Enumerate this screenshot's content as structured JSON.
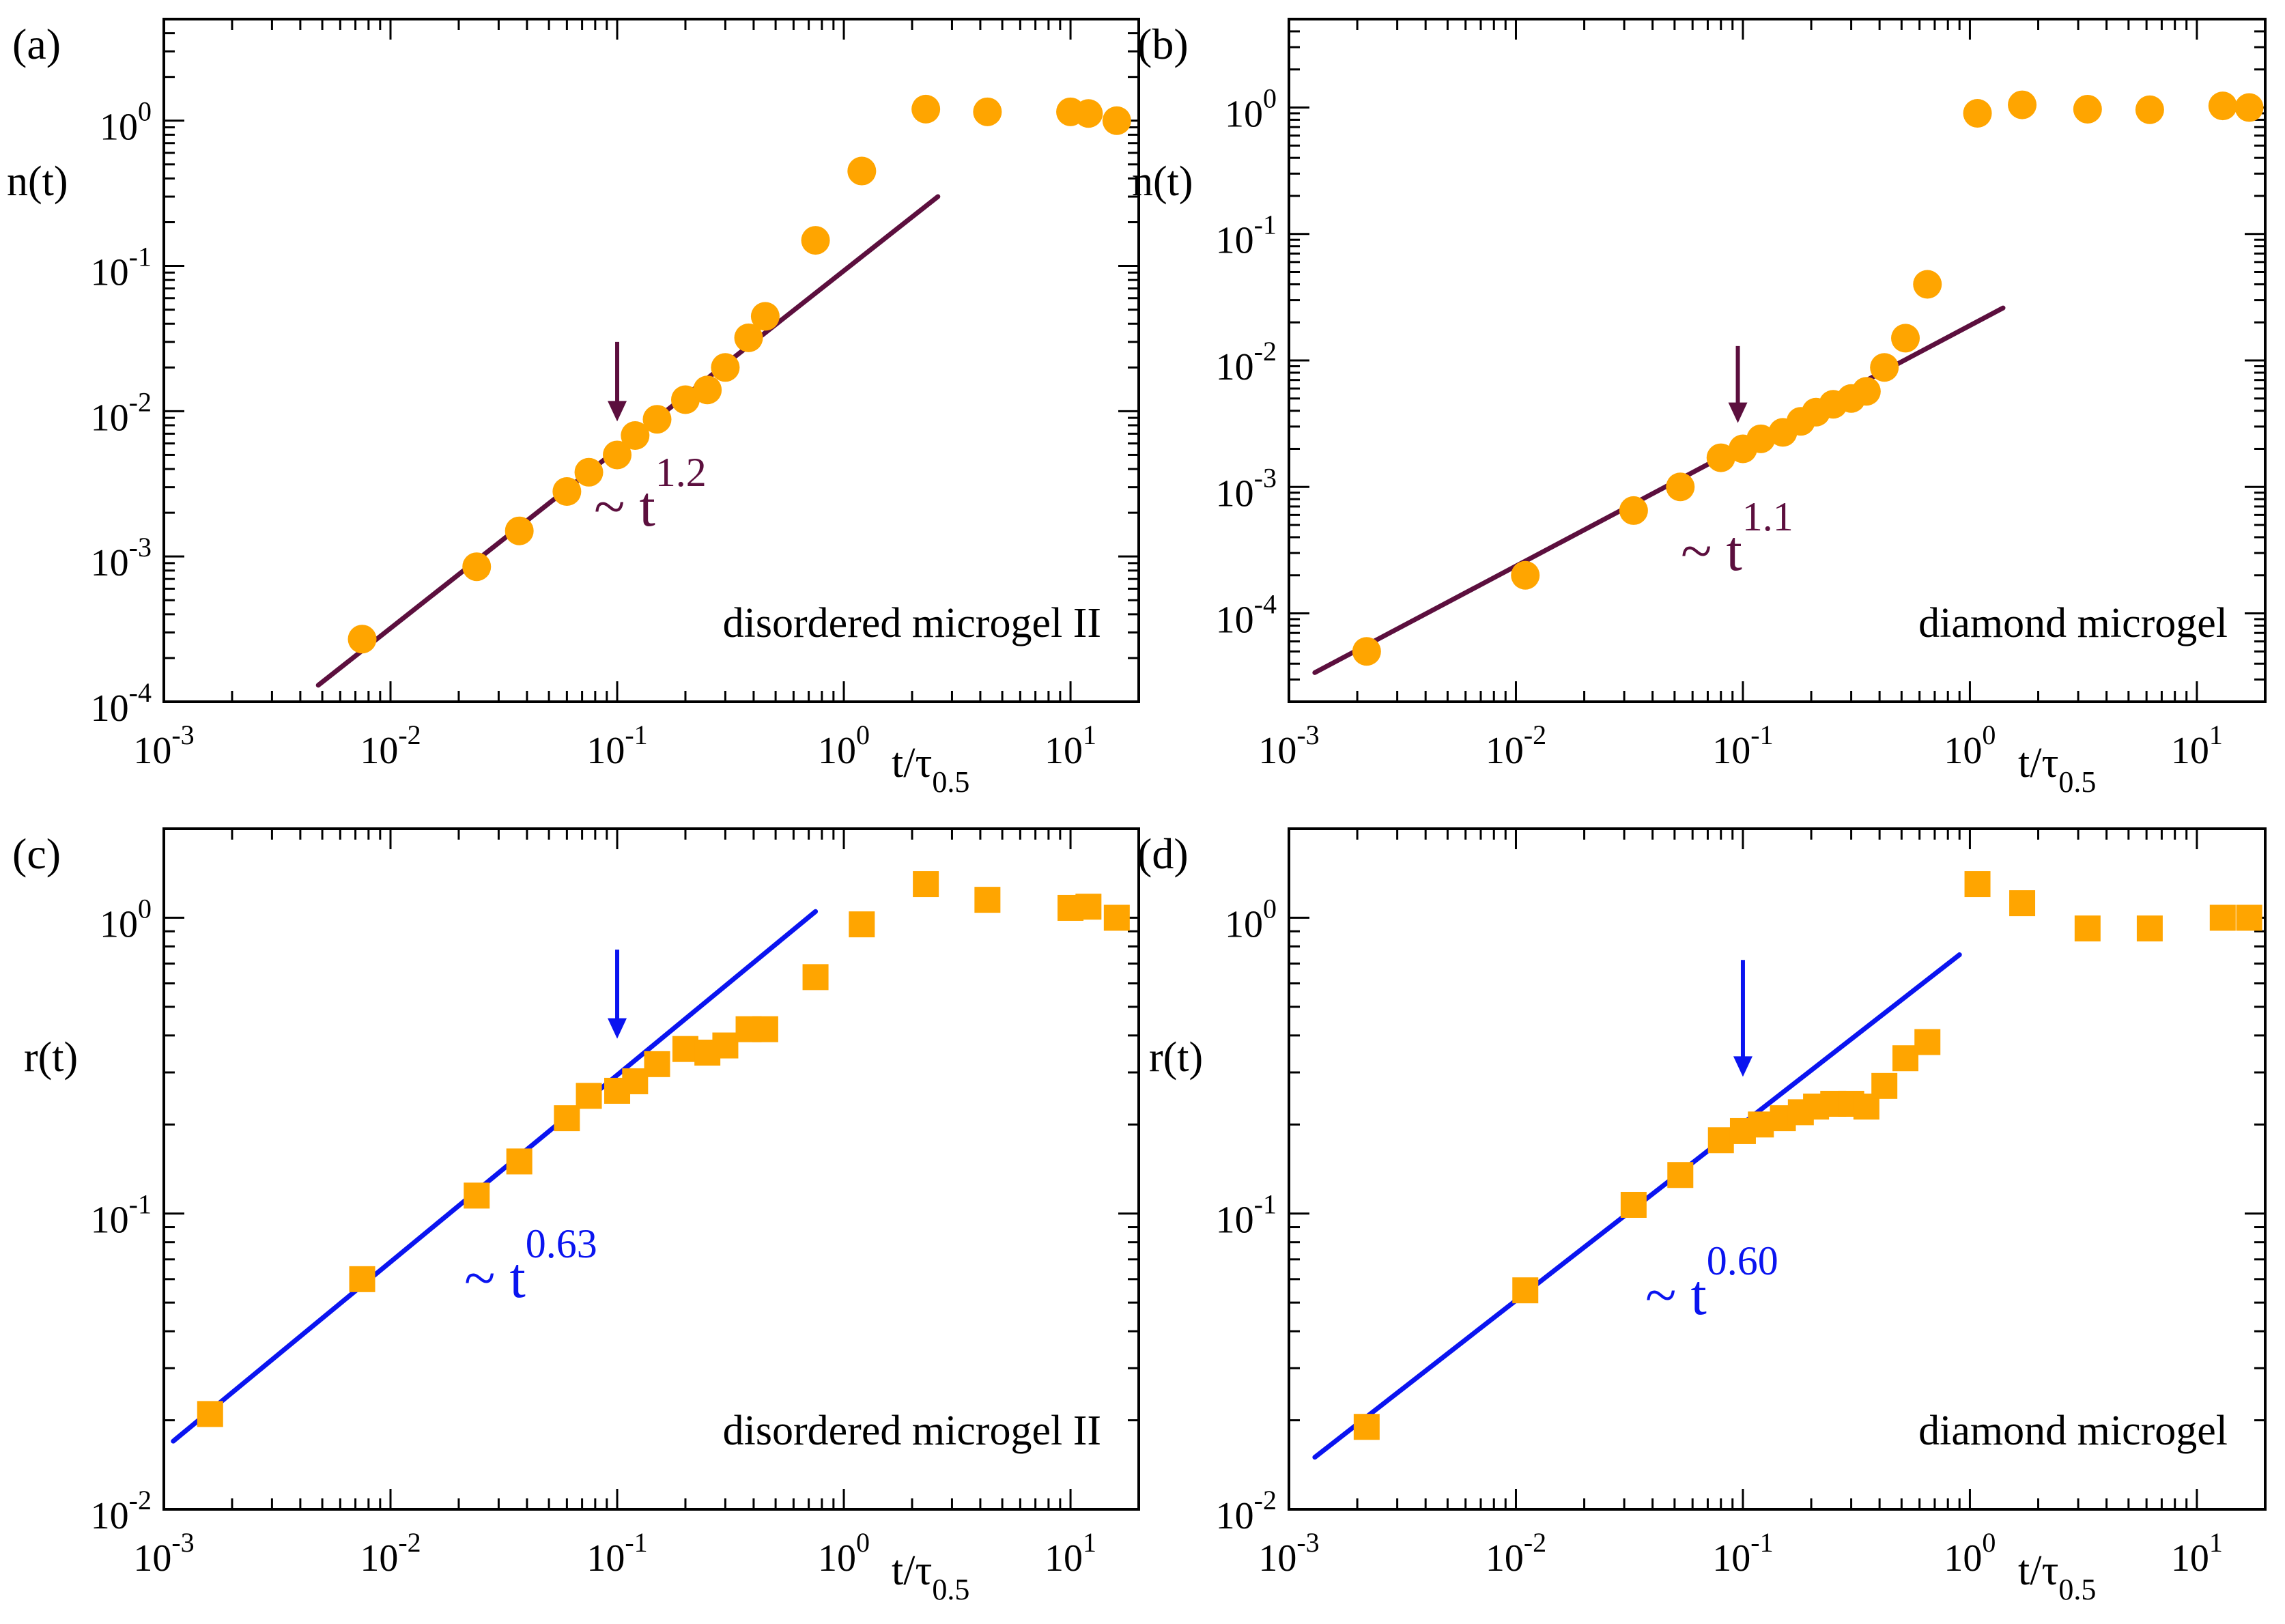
{
  "figure": {
    "colors": {
      "marker": "#FFA500",
      "fit_purple": "#5C0F3E",
      "fit_blue": "#0A14F0",
      "axis": "#000000"
    }
  },
  "chart_data": [
    {
      "type": "scatter",
      "panel_label": "(a)",
      "ylabel": "n(t)",
      "xlabel_base": "t/τ",
      "xlabel_sub": "0.5",
      "annotation": "disordered microgel II",
      "scale": "log-log",
      "xlim": [
        0.001,
        20
      ],
      "ylim": [
        0.0001,
        5
      ],
      "x_ticks": [
        {
          "v": 0.001,
          "b": "10",
          "e": "-3"
        },
        {
          "v": 0.01,
          "b": "10",
          "e": "-2"
        },
        {
          "v": 0.1,
          "b": "10",
          "e": "-1"
        },
        {
          "v": 1,
          "b": "10",
          "e": "0"
        },
        {
          "v": 10,
          "b": "10",
          "e": "1"
        }
      ],
      "y_ticks": [
        {
          "v": 0.0001,
          "b": "10",
          "e": "-4"
        },
        {
          "v": 0.001,
          "b": "10",
          "e": "-3"
        },
        {
          "v": 0.01,
          "b": "10",
          "e": "-2"
        },
        {
          "v": 0.1,
          "b": "10",
          "e": "-1"
        },
        {
          "v": 1,
          "b": "10",
          "e": "0"
        }
      ],
      "marker": "circle",
      "marker_color": "#FFA500",
      "points": [
        [
          0.0075,
          0.00027
        ],
        [
          0.024,
          0.00085
        ],
        [
          0.037,
          0.0015
        ],
        [
          0.06,
          0.0028
        ],
        [
          0.075,
          0.0038
        ],
        [
          0.1,
          0.005
        ],
        [
          0.12,
          0.0068
        ],
        [
          0.15,
          0.0088
        ],
        [
          0.2,
          0.012
        ],
        [
          0.25,
          0.014
        ],
        [
          0.3,
          0.02
        ],
        [
          0.38,
          0.032
        ],
        [
          0.45,
          0.045
        ],
        [
          0.75,
          0.15
        ],
        [
          1.2,
          0.45
        ],
        [
          2.3,
          1.2
        ],
        [
          4.3,
          1.15
        ],
        [
          10,
          1.15
        ],
        [
          12,
          1.12
        ],
        [
          16,
          1.0
        ]
      ],
      "fit": {
        "label_base": "~ t",
        "label_exp": "1.2",
        "color": "#5C0F3E",
        "x": [
          0.0048,
          2.6
        ],
        "y": [
          0.00013,
          0.3
        ]
      },
      "arrow": {
        "x": 0.1,
        "y_from": 0.03,
        "y_to": 0.0085,
        "color": "#5C0F3E"
      }
    },
    {
      "type": "scatter",
      "panel_label": "(b)",
      "ylabel": "n(t)",
      "xlabel_base": "t/τ",
      "xlabel_sub": "0.5",
      "annotation": "diamond microgel",
      "scale": "log-log",
      "xlim": [
        0.001,
        20
      ],
      "ylim": [
        2e-05,
        5
      ],
      "x_ticks": [
        {
          "v": 0.001,
          "b": "10",
          "e": "-3"
        },
        {
          "v": 0.01,
          "b": "10",
          "e": "-2"
        },
        {
          "v": 0.1,
          "b": "10",
          "e": "-1"
        },
        {
          "v": 1,
          "b": "10",
          "e": "0"
        },
        {
          "v": 10,
          "b": "10",
          "e": "1"
        }
      ],
      "y_ticks": [
        {
          "v": 0.0001,
          "b": "10",
          "e": "-4"
        },
        {
          "v": 0.001,
          "b": "10",
          "e": "-3"
        },
        {
          "v": 0.01,
          "b": "10",
          "e": "-2"
        },
        {
          "v": 0.1,
          "b": "10",
          "e": "-1"
        },
        {
          "v": 1,
          "b": "10",
          "e": "0"
        }
      ],
      "marker": "circle",
      "marker_color": "#FFA500",
      "points": [
        [
          0.0022,
          5e-05
        ],
        [
          0.011,
          0.0002
        ],
        [
          0.033,
          0.00065
        ],
        [
          0.053,
          0.001
        ],
        [
          0.08,
          0.0017
        ],
        [
          0.1,
          0.002
        ],
        [
          0.12,
          0.0024
        ],
        [
          0.15,
          0.0027
        ],
        [
          0.18,
          0.0033
        ],
        [
          0.21,
          0.0039
        ],
        [
          0.25,
          0.0045
        ],
        [
          0.3,
          0.005
        ],
        [
          0.35,
          0.0057
        ],
        [
          0.42,
          0.0088
        ],
        [
          0.52,
          0.015
        ],
        [
          0.65,
          0.04
        ],
        [
          1.08,
          0.9
        ],
        [
          1.7,
          1.05
        ],
        [
          3.3,
          0.97
        ],
        [
          6.2,
          0.96
        ],
        [
          13,
          1.03
        ],
        [
          17,
          1.0
        ]
      ],
      "fit": {
        "label_base": "~ t",
        "label_exp": "1.1",
        "color": "#5C0F3E",
        "x": [
          0.0013,
          1.4
        ],
        "y": [
          3.4e-05,
          0.026
        ]
      },
      "arrow": {
        "x": 0.095,
        "y_from": 0.013,
        "y_to": 0.0032,
        "color": "#5C0F3E"
      }
    },
    {
      "type": "scatter",
      "panel_label": "(c)",
      "ylabel": "r(t)",
      "xlabel_base": "t/τ",
      "xlabel_sub": "0.5",
      "annotation": "disordered microgel II",
      "scale": "log-log",
      "xlim": [
        0.001,
        20
      ],
      "ylim": [
        0.01,
        2
      ],
      "x_ticks": [
        {
          "v": 0.001,
          "b": "10",
          "e": "-3"
        },
        {
          "v": 0.01,
          "b": "10",
          "e": "-2"
        },
        {
          "v": 0.1,
          "b": "10",
          "e": "-1"
        },
        {
          "v": 1,
          "b": "10",
          "e": "0"
        },
        {
          "v": 10,
          "b": "10",
          "e": "1"
        }
      ],
      "y_ticks": [
        {
          "v": 0.01,
          "b": "10",
          "e": "-2"
        },
        {
          "v": 0.1,
          "b": "10",
          "e": "-1"
        },
        {
          "v": 1,
          "b": "10",
          "e": "0"
        }
      ],
      "marker": "square",
      "marker_color": "#FFA500",
      "points": [
        [
          0.0016,
          0.021
        ],
        [
          0.0075,
          0.06
        ],
        [
          0.024,
          0.115
        ],
        [
          0.037,
          0.15
        ],
        [
          0.06,
          0.21
        ],
        [
          0.075,
          0.25
        ],
        [
          0.1,
          0.26
        ],
        [
          0.12,
          0.28
        ],
        [
          0.15,
          0.32
        ],
        [
          0.2,
          0.36
        ],
        [
          0.25,
          0.35
        ],
        [
          0.3,
          0.37
        ],
        [
          0.38,
          0.42
        ],
        [
          0.45,
          0.42
        ],
        [
          0.75,
          0.63
        ],
        [
          1.2,
          0.95
        ],
        [
          2.3,
          1.3
        ],
        [
          4.3,
          1.15
        ],
        [
          10,
          1.08
        ],
        [
          12,
          1.09
        ],
        [
          16,
          1.0
        ]
      ],
      "fit": {
        "label_base": "~ t",
        "label_exp": "0.63",
        "color": "#0A14F0",
        "x": [
          0.0011,
          0.75
        ],
        "y": [
          0.017,
          1.05
        ]
      },
      "arrow": {
        "x": 0.1,
        "y_from": 0.78,
        "y_to": 0.39,
        "color": "#0A14F0"
      }
    },
    {
      "type": "scatter",
      "panel_label": "(d)",
      "ylabel": "r(t)",
      "xlabel_base": "t/τ",
      "xlabel_sub": "0.5",
      "annotation": "diamond microgel",
      "scale": "log-log",
      "xlim": [
        0.001,
        20
      ],
      "ylim": [
        0.01,
        2
      ],
      "x_ticks": [
        {
          "v": 0.001,
          "b": "10",
          "e": "-3"
        },
        {
          "v": 0.01,
          "b": "10",
          "e": "-2"
        },
        {
          "v": 0.1,
          "b": "10",
          "e": "-1"
        },
        {
          "v": 1,
          "b": "10",
          "e": "0"
        },
        {
          "v": 10,
          "b": "10",
          "e": "1"
        }
      ],
      "y_ticks": [
        {
          "v": 0.01,
          "b": "10",
          "e": "-2"
        },
        {
          "v": 0.1,
          "b": "10",
          "e": "-1"
        },
        {
          "v": 1,
          "b": "10",
          "e": "0"
        }
      ],
      "marker": "square",
      "marker_color": "#FFA500",
      "points": [
        [
          0.0022,
          0.019
        ],
        [
          0.011,
          0.055
        ],
        [
          0.033,
          0.107
        ],
        [
          0.053,
          0.135
        ],
        [
          0.08,
          0.177
        ],
        [
          0.1,
          0.19
        ],
        [
          0.12,
          0.2
        ],
        [
          0.15,
          0.21
        ],
        [
          0.18,
          0.22
        ],
        [
          0.21,
          0.23
        ],
        [
          0.25,
          0.235
        ],
        [
          0.3,
          0.235
        ],
        [
          0.35,
          0.23
        ],
        [
          0.42,
          0.27
        ],
        [
          0.52,
          0.335
        ],
        [
          0.65,
          0.38
        ],
        [
          1.08,
          1.3
        ],
        [
          1.7,
          1.12
        ],
        [
          3.3,
          0.92
        ],
        [
          6.2,
          0.92
        ],
        [
          13,
          1.0
        ],
        [
          17,
          1.0
        ]
      ],
      "fit": {
        "label_base": "~ t",
        "label_exp": "0.60",
        "color": "#0A14F0",
        "x": [
          0.0013,
          0.9
        ],
        "y": [
          0.015,
          0.75
        ]
      },
      "arrow": {
        "x": 0.1,
        "y_from": 0.72,
        "y_to": 0.29,
        "color": "#0A14F0"
      }
    }
  ]
}
